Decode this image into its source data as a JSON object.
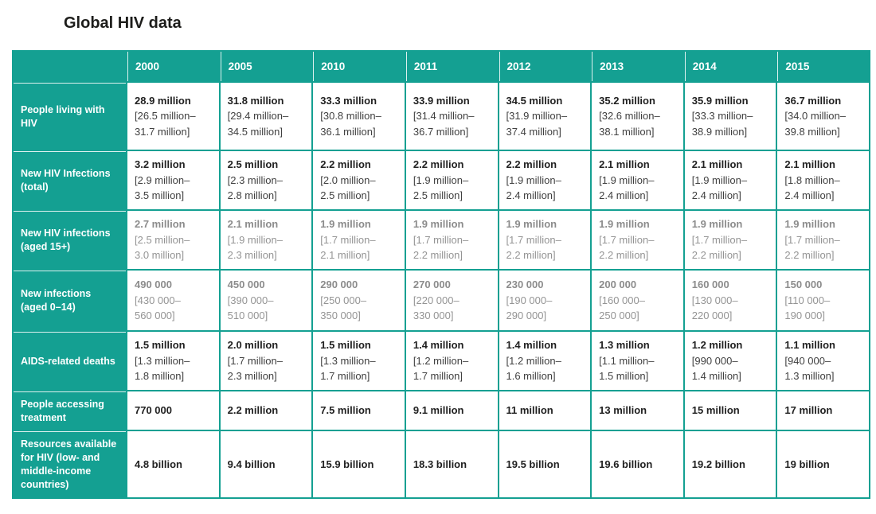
{
  "page": {
    "title": "Global HIV data"
  },
  "colors": {
    "teal": "#14a092",
    "header_text": "#ffffff",
    "value_text": "#212121",
    "range_text": "#404040",
    "muted_value_text": "#8c8c8c",
    "muted_range_text": "#949494",
    "background": "#ffffff"
  },
  "chart_data": {
    "type": "table",
    "title": "Global HIV data",
    "categories": [
      "2000",
      "2005",
      "2010",
      "2011",
      "2012",
      "2013",
      "2014",
      "2015"
    ],
    "series": [
      {
        "name": "People living with HIV",
        "muted": false,
        "values": [
          "28.9 million",
          "31.8 million",
          "33.3 million",
          "33.9 million",
          "34.5 million",
          "35.2 million",
          "35.9 million",
          "36.7 million"
        ],
        "ranges": [
          "[26.5 million–\n31.7 million]",
          "[29.4 million–\n34.5 million]",
          "[30.8 million–\n36.1 million]",
          "[31.4 million–\n36.7 million]",
          "[31.9 million–\n37.4 million]",
          "[32.6 million–\n38.1 million]",
          "[33.3 million–\n38.9 million]",
          "[34.0 million–\n39.8 million]"
        ]
      },
      {
        "name": "New HIV Infections (total)",
        "muted": false,
        "values": [
          "3.2 million",
          "2.5 million",
          "2.2 million",
          "2.2 million",
          "2.2 million",
          "2.1 million",
          "2.1 million",
          "2.1 million"
        ],
        "ranges": [
          "[2.9 million–\n3.5 million]",
          "[2.3 million–\n2.8 million]",
          "[2.0 million–\n2.5 million]",
          "[1.9 million–\n2.5 million]",
          "[1.9 million–\n2.4 million]",
          "[1.9 million–\n2.4 million]",
          "[1.9 million–\n2.4 million]",
          "[1.8 million–\n2.4 million]"
        ]
      },
      {
        "name": "New HIV infections (aged 15+)",
        "muted": true,
        "values": [
          "2.7 million",
          "2.1 million",
          "1.9 million",
          "1.9 million",
          "1.9 million",
          "1.9 million",
          "1.9 million",
          "1.9 million"
        ],
        "ranges": [
          "[2.5 million–\n3.0 million]",
          "[1.9 million–\n2.3 million]",
          "[1.7 million–\n2.1 million]",
          "[1.7 million–\n2.2 million]",
          "[1.7 million–\n2.2 million]",
          "[1.7 million–\n2.2 million]",
          "[1.7 million–\n2.2 million]",
          "[1.7 million–\n2.2 million]"
        ]
      },
      {
        "name": "New infections (aged 0–14)",
        "muted": true,
        "values": [
          "490 000",
          "450 000",
          "290 000",
          "270 000",
          "230 000",
          "200 000",
          "160 000",
          "150 000"
        ],
        "ranges": [
          "[430 000–\n560 000]",
          "[390 000–\n510 000]",
          "[250 000–\n350 000]",
          "[220 000–\n330 000]",
          "[190 000–\n290 000]",
          "[160 000–\n250 000]",
          "[130 000–\n220 000]",
          "[110 000–\n190 000]"
        ]
      },
      {
        "name": "AIDS-related deaths",
        "muted": false,
        "values": [
          "1.5 million",
          "2.0 million",
          "1.5 million",
          "1.4 million",
          "1.4 million",
          "1.3 million",
          "1.2 million",
          "1.1 million"
        ],
        "ranges": [
          "[1.3 million–\n1.8 million]",
          "[1.7 million–\n2.3 million]",
          "[1.3 million–\n1.7 million]",
          "[1.2 million–\n1.7 million]",
          "[1.2 million–\n1.6 million]",
          "[1.1 million–\n1.5 million]",
          "[990 000–\n1.4 million]",
          "[940 000–\n1.3 million]"
        ]
      },
      {
        "name": "People accessing treatment",
        "muted": false,
        "values": [
          "770 000",
          "2.2 million",
          "7.5 million",
          "9.1 million",
          "11 million",
          "13 million",
          "15 million",
          "17 million"
        ],
        "ranges": [
          "",
          "",
          "",
          "",
          "",
          "",
          "",
          ""
        ]
      },
      {
        "name": "Resources available for HIV (low- and middle-income countries)",
        "muted": false,
        "values": [
          "4.8 billion",
          "9.4 billion",
          "15.9 billion",
          "18.3 billion",
          "19.5 billion",
          "19.6 billion",
          "19.2 billion",
          "19 billion"
        ],
        "ranges": [
          "",
          "",
          "",
          "",
          "",
          "",
          "",
          ""
        ]
      }
    ]
  }
}
